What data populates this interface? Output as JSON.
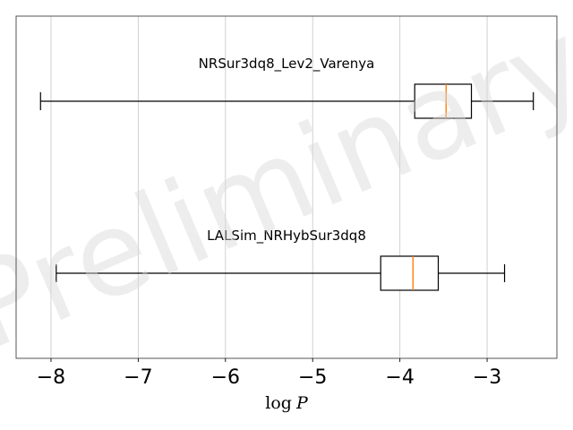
{
  "chart_data": {
    "type": "boxplot",
    "orientation": "horizontal",
    "xlabel_prefix": "log",
    "xlabel_var": "P",
    "xlim": [
      -8.4,
      -2.2
    ],
    "xticks": [
      -8,
      -7,
      -6,
      -5,
      -4,
      -3
    ],
    "xtick_labels": [
      "−8",
      "−7",
      "−6",
      "−5",
      "−4",
      "−3"
    ],
    "grid": "vertical",
    "watermark": "Preliminary",
    "median_color": "#ff7f0e",
    "series": [
      {
        "name": "NRSur3dq8_Lev2_Varenya",
        "whisker_low": -8.12,
        "q1": -3.83,
        "median": -3.47,
        "q3": -3.18,
        "whisker_high": -2.47
      },
      {
        "name": "LALSim_NRHybSur3dq8",
        "whisker_low": -7.94,
        "q1": -4.22,
        "median": -3.85,
        "q3": -3.56,
        "whisker_high": -2.8
      }
    ]
  }
}
